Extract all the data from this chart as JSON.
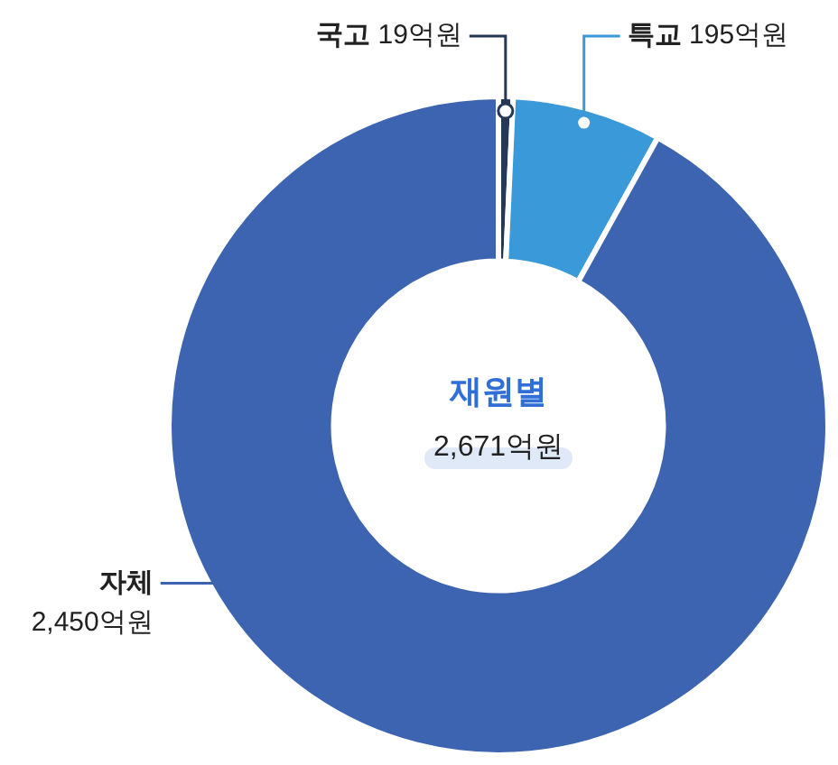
{
  "chart_data": {
    "type": "donut",
    "title": "재원별",
    "subtitle": "2,671억원",
    "categories": [
      "국고",
      "특교",
      "자체"
    ],
    "values": [
      19,
      195,
      2450
    ],
    "value_labels": [
      "19억원",
      "195억원",
      "2,450억원"
    ],
    "colors": [
      "#263858",
      "#3a9ad9",
      "#3d64b0"
    ],
    "legend": false
  }
}
